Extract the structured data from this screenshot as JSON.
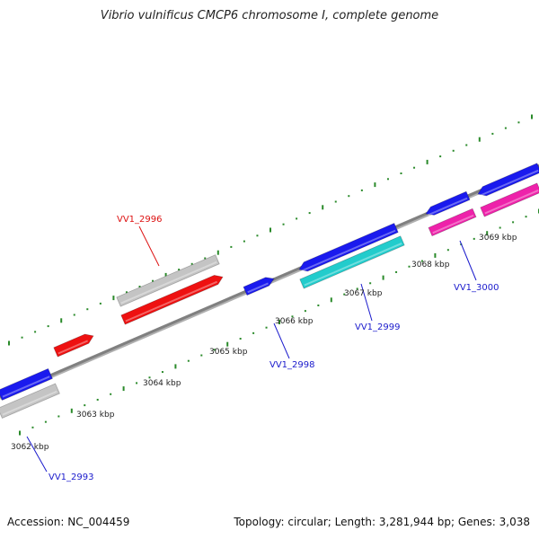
{
  "title": "Vibrio vulnificus CMCP6 chromosome I, complete genome",
  "footer": {
    "accession": "Accession: NC_004459",
    "summary": "Topology: circular; Length: 3,281,944 bp; Genes: 3,038"
  },
  "colors": {
    "backbone": "#808080",
    "tick": "#2a8a2a",
    "red": "#ee1111",
    "blue": "#1a1aee",
    "grey": "#c4c4c4",
    "cyan": "#22cccc",
    "magenta": "#ee22aa",
    "label_red": "#dd1111",
    "label_blue": "#1a1acc"
  },
  "scale_labels": [
    "3062 kbp",
    "3063 kbp",
    "3064 kbp",
    "3065 kbp",
    "3066 kbp",
    "3067 kbp",
    "3068 kbp",
    "3069 kbp"
  ],
  "gene_labels": [
    {
      "name": "VV1_2996",
      "color": "label_red"
    },
    {
      "name": "VV1_2993",
      "color": "label_blue"
    },
    {
      "name": "VV1_2998",
      "color": "label_blue"
    },
    {
      "name": "VV1_2999",
      "color": "label_blue"
    },
    {
      "name": "VV1_3000",
      "color": "label_blue"
    }
  ]
}
